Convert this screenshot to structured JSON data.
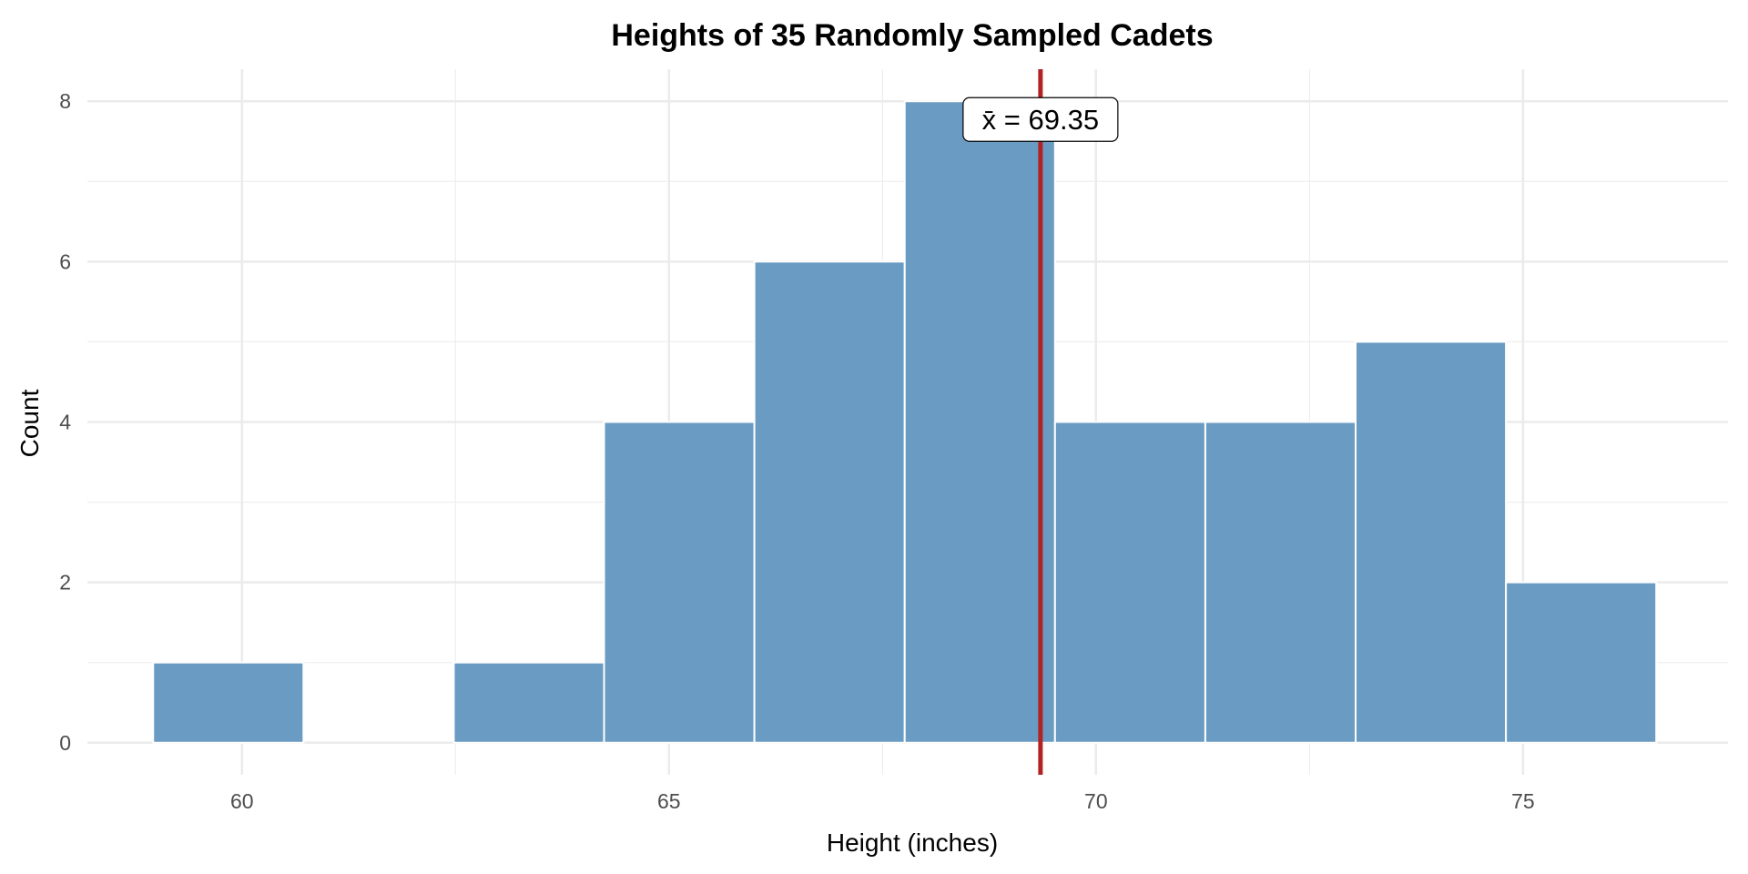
{
  "chart_data": {
    "type": "bar",
    "title": "Heights of 35 Randomly Sampled Cadets",
    "xlabel": "Height (inches)",
    "ylabel": "Count",
    "bins": [
      {
        "start": 58.96,
        "end": 60.72,
        "count": 1
      },
      {
        "start": 60.72,
        "end": 62.48,
        "count": 0
      },
      {
        "start": 62.48,
        "end": 64.24,
        "count": 1
      },
      {
        "start": 64.24,
        "end": 66.0,
        "count": 4
      },
      {
        "start": 66.0,
        "end": 67.76,
        "count": 6
      },
      {
        "start": 67.76,
        "end": 69.52,
        "count": 8
      },
      {
        "start": 69.52,
        "end": 71.28,
        "count": 4
      },
      {
        "start": 71.28,
        "end": 73.04,
        "count": 4
      },
      {
        "start": 73.04,
        "end": 74.8,
        "count": 5
      },
      {
        "start": 74.8,
        "end": 76.56,
        "count": 2
      }
    ],
    "xlim": [
      58.19,
      77.4
    ],
    "ylim": [
      -0.4,
      8.4
    ],
    "xticks": [
      60,
      65,
      70,
      75
    ],
    "yticks": [
      0,
      2,
      4,
      6,
      8
    ],
    "grid": true,
    "mean": 69.35,
    "mean_label": "x̄ = 69.35",
    "colors": {
      "bar": "#6a9bc3",
      "mean_line": "#b22222",
      "grid": "#ebebeb"
    }
  }
}
